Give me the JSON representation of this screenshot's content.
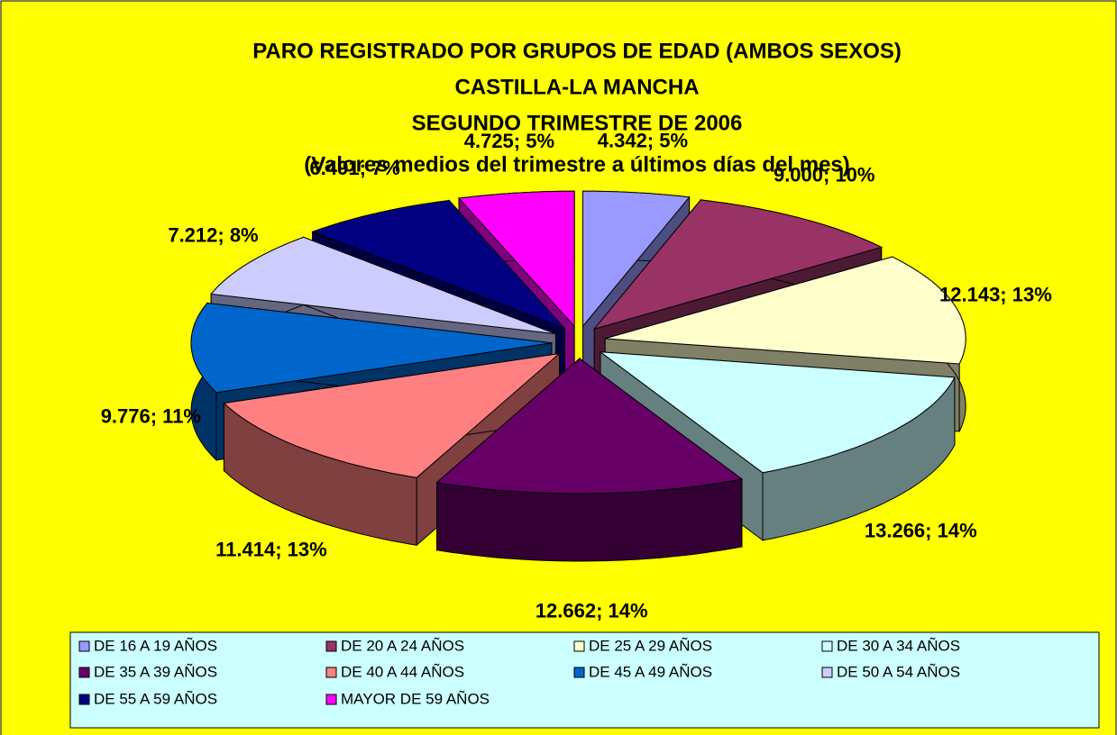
{
  "chart_data": {
    "type": "pie3d",
    "title": [
      "PARO REGISTRADO POR GRUPOS DE EDAD (AMBOS SEXOS)",
      "CASTILLA-LA MANCHA",
      "SEGUNDO TRIMESTRE DE 2006"
    ],
    "subtitle": "(Valores medios del trimestre a últimos días del mes)",
    "categories": [
      "DE 16 A 19 AÑOS",
      "DE 20 A 24 AÑOS",
      "DE 25 A 29 AÑOS",
      "DE 30 A 34 AÑOS",
      "DE 35 A 39 AÑOS",
      "DE 40 A 44 AÑOS",
      "DE 45 A 49 AÑOS",
      "DE 50 A 54 AÑOS",
      "DE 55 A 59 AÑOS",
      "MAYOR DE 59 AÑOS"
    ],
    "values": [
      4342,
      9000,
      12143,
      13266,
      12662,
      11414,
      9776,
      7212,
      6491,
      4725
    ],
    "value_labels": [
      "4.342; 5%",
      "9.000; 10%",
      "12.143; 13%",
      "13.266; 14%",
      "12.662; 14%",
      "11.414; 13%",
      "9.776; 11%",
      "7.212; 8%",
      "6.491; 7%",
      "4.725; 5%"
    ],
    "colors": [
      "#9999ff",
      "#993366",
      "#ffffcc",
      "#ccffff",
      "#660066",
      "#ff8080",
      "#0066cc",
      "#ccccff",
      "#000080",
      "#ff00ff"
    ],
    "legend": "bottom"
  }
}
